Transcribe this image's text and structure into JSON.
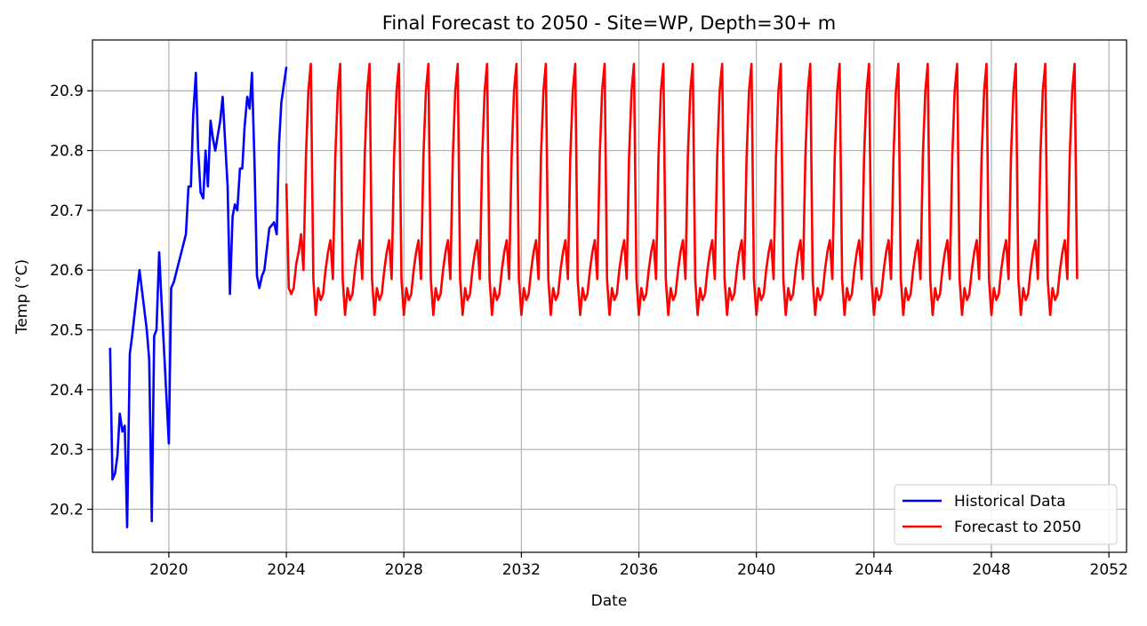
{
  "chart_data": {
    "type": "line",
    "title": "Final Forecast to 2050 - Site=WP, Depth=30+ m",
    "xlabel": "Date",
    "ylabel": "Temp (°C)",
    "xlim": [
      2017.4,
      2052.6
    ],
    "ylim": [
      20.128,
      20.985
    ],
    "x_ticks": [
      2020,
      2024,
      2028,
      2032,
      2036,
      2040,
      2044,
      2048,
      2052
    ],
    "x_tick_labels": [
      "2020",
      "2024",
      "2028",
      "2032",
      "2036",
      "2040",
      "2044",
      "2048",
      "2052"
    ],
    "y_ticks": [
      20.2,
      20.3,
      20.4,
      20.5,
      20.6,
      20.7,
      20.8,
      20.9
    ],
    "y_tick_labels": [
      "20.2",
      "20.3",
      "20.4",
      "20.5",
      "20.6",
      "20.7",
      "20.8",
      "20.9"
    ],
    "grid": true,
    "legend_position": "bottom-right",
    "series": [
      {
        "name": "Historical Data",
        "color": "#0000ff",
        "x": [
          2018.0,
          2018.08,
          2018.17,
          2018.25,
          2018.33,
          2018.42,
          2018.5,
          2018.58,
          2018.67,
          2018.75,
          2019.0,
          2019.25,
          2019.33,
          2019.42,
          2019.5,
          2019.58,
          2019.67,
          2019.75,
          2020.0,
          2020.08,
          2020.17,
          2020.58,
          2020.67,
          2020.75,
          2020.83,
          2020.92,
          2021.0,
          2021.08,
          2021.17,
          2021.25,
          2021.33,
          2021.42,
          2021.5,
          2021.58,
          2021.75,
          2021.83,
          2022.0,
          2022.08,
          2022.17,
          2022.25,
          2022.33,
          2022.42,
          2022.5,
          2022.58,
          2022.67,
          2022.75,
          2022.83,
          2022.92,
          2023.0,
          2023.08,
          2023.17,
          2023.25,
          2023.42,
          2023.58,
          2023.67,
          2023.75,
          2023.83,
          2024.0
        ],
        "y": [
          20.47,
          20.25,
          20.26,
          20.29,
          20.36,
          20.33,
          20.34,
          20.17,
          20.46,
          20.49,
          20.6,
          20.5,
          20.45,
          20.18,
          20.49,
          20.5,
          20.63,
          20.55,
          20.31,
          20.57,
          20.58,
          20.66,
          20.74,
          20.74,
          20.86,
          20.93,
          20.8,
          20.73,
          20.72,
          20.8,
          20.74,
          20.85,
          20.82,
          20.8,
          20.85,
          20.89,
          20.74,
          20.56,
          20.69,
          20.71,
          20.7,
          20.77,
          20.77,
          20.84,
          20.89,
          20.87,
          20.93,
          20.77,
          20.59,
          20.57,
          20.59,
          20.6,
          20.67,
          20.68,
          20.66,
          20.81,
          20.88,
          20.94
        ]
      },
      {
        "name": "Forecast to 2050",
        "color": "#ff0000",
        "x_start": 2024.0,
        "x_step": 0.0833333,
        "months": 84,
        "cycle_offsets": [
          0.0,
          0.0833,
          0.1667,
          0.25,
          0.3333,
          0.4167,
          0.5,
          0.5833,
          0.6667,
          0.75,
          0.8333,
          0.9167
        ],
        "first_value": 20.745,
        "cycle_values": [
          20.54,
          20.57,
          20.56,
          20.57,
          20.61,
          20.63,
          20.66,
          20.6,
          20.79,
          20.9,
          20.945,
          20.585,
          20.525,
          20.57,
          20.55,
          20.56,
          20.6,
          20.63,
          20.65,
          20.585,
          20.79,
          20.9,
          20.945,
          20.585
        ]
      }
    ]
  }
}
